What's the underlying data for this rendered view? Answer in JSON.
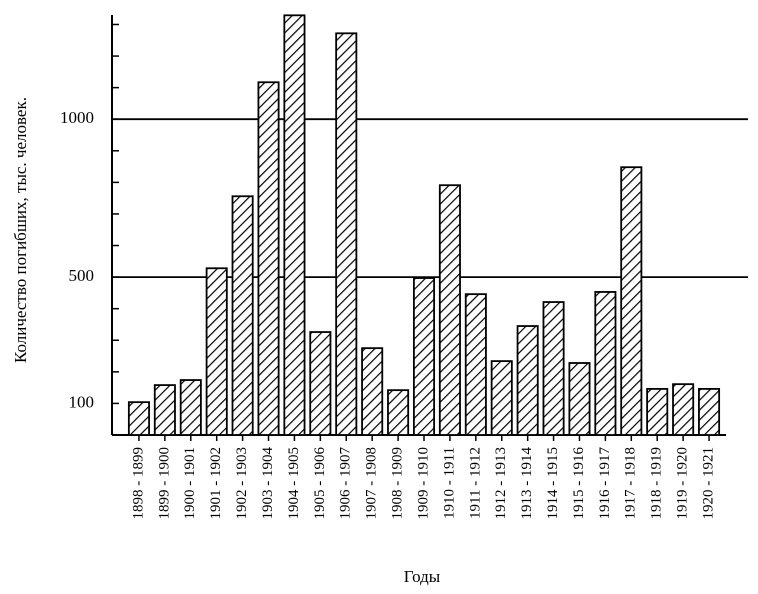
{
  "chart_data": {
    "type": "bar",
    "y_label": "Количество погибших, тыс. человек.",
    "x_label": "Годы",
    "categories": [
      "1898 - 1899",
      "1899 - 1900",
      "1900 - 1901",
      "1901 - 1902",
      "1902 - 1903",
      "1903 - 1904",
      "1904 - 1905",
      "1905 - 1906",
      "1906 - 1907",
      "1907 - 1908",
      "1908 - 1909",
      "1909 - 1910",
      "1910 - 1911",
      "1911 - 1912",
      "1912 - 1913",
      "1913 - 1914",
      "1914 - 1915",
      "1915 - 1916",
      "1916 - 1917",
      "1917 - 1918",
      "1918 - 1919",
      "1919 - 1920",
      "1920 - 1921"
    ],
    "values": [
      104,
      158,
      174,
      528,
      756,
      1117,
      1329,
      326,
      1272,
      275,
      142,
      497,
      791,
      446,
      234,
      345,
      421,
      228,
      453,
      848,
      146,
      161,
      146
    ],
    "color": "#000000",
    "ylim": [
      0,
      1330
    ],
    "yticks": [
      100,
      500,
      1000
    ],
    "minor_yticks": [
      100,
      200,
      300,
      400,
      500,
      600,
      700,
      800,
      900,
      1000,
      1100,
      1200,
      1300
    ],
    "grid_lines": [
      500,
      1000
    ]
  }
}
